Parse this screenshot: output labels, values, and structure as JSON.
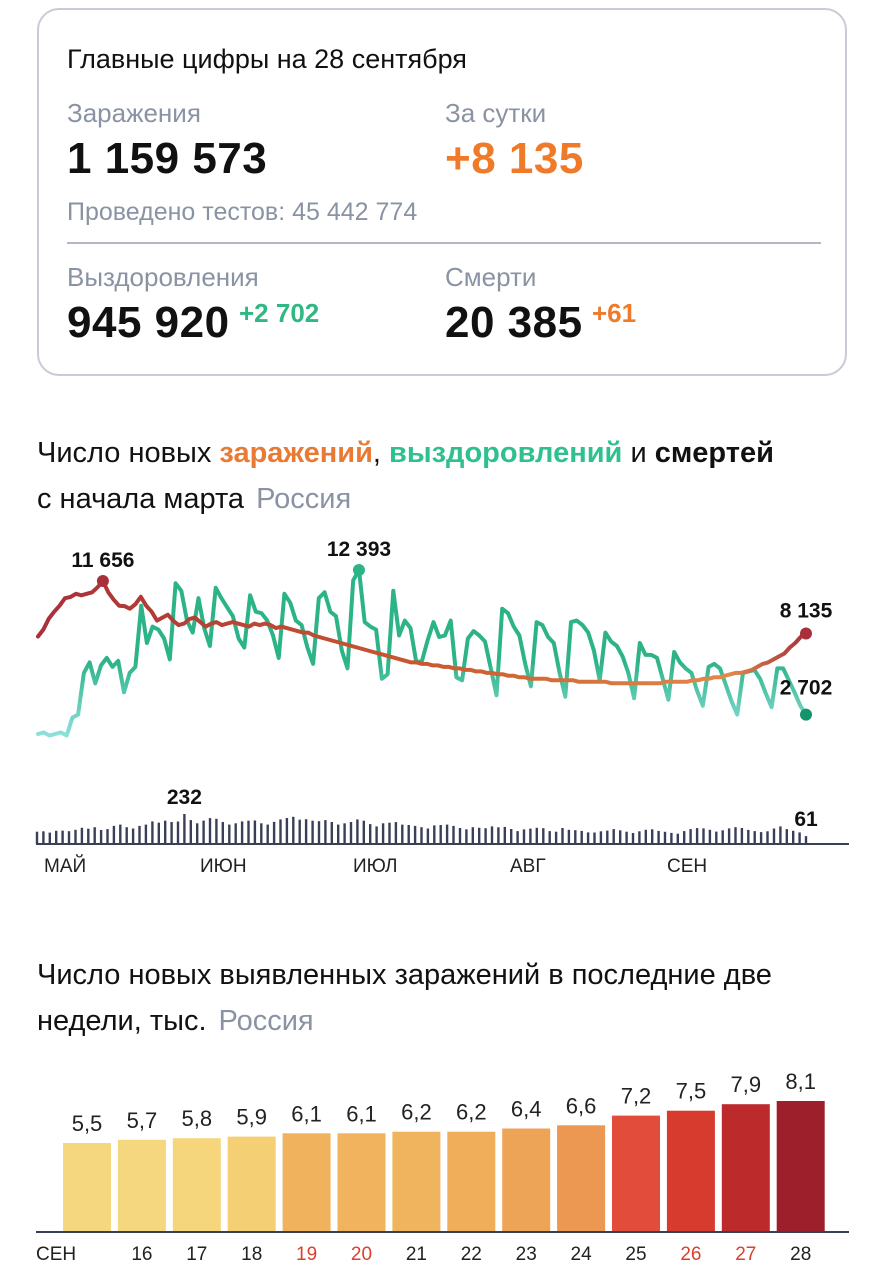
{
  "summary": {
    "title": "Главные цифры на 28 сентября",
    "infections_label": "Заражения",
    "infections_value": "1 159 573",
    "daily_label": "За сутки",
    "daily_value": "+8 135",
    "tests_text": "Проведено тестов: 45 442 774",
    "recoveries_label": "Выздоровления",
    "recoveries_value": "945 920",
    "recoveries_delta": "+2 702",
    "deaths_label": "Смерти",
    "deaths_value": "20 385",
    "deaths_delta": "+61"
  },
  "chart1_title": {
    "part1": "Число новых ",
    "cases": "заражений",
    "sep": ", ",
    "recoveries": "выздоровлений",
    "and": " и ",
    "deaths": "смертей",
    "line2": "с начала марта",
    "region": "Россия"
  },
  "chart2_title": {
    "line1": "Число новых выявленных заражений в последние две",
    "line2": "недели, тыс.",
    "region": "Россия"
  },
  "colors": {
    "cases": "#c9582f",
    "cases_marker": "#a8303a",
    "recoveries": "#2db388",
    "recoveries_light": "#8de0da",
    "deaths": "#3a3f58"
  },
  "chart_data": [
    {
      "type": "line",
      "x_labels": [
        "МАЙ",
        "ИЮН",
        "ИЮЛ",
        "АВГ",
        "СЕН"
      ],
      "series": [
        {
          "name": "заражений",
          "values": [
            7933,
            8407,
            9137,
            9600,
            10000,
            10500,
            10581,
            10800,
            10700,
            10800,
            10900,
            11231,
            11656,
            10900,
            10400,
            10000,
            9974,
            9800,
            10100,
            10600,
            10000,
            9600,
            9000,
            9200,
            9400,
            9000,
            8700,
            8800,
            9100,
            9200,
            8900,
            8600,
            8800,
            8900,
            8700,
            8800,
            8900,
            8800,
            8700,
            8600,
            8800,
            8700,
            8800,
            8700,
            8500,
            8600,
            8500,
            8400,
            8300,
            8200,
            8200,
            8000,
            7900,
            7800,
            7700,
            7600,
            7500,
            7400,
            7300,
            7200,
            7100,
            7000,
            6900,
            6800,
            6700,
            6600,
            6500,
            6400,
            6300,
            6200,
            6200,
            6100,
            6100,
            6000,
            6000,
            5900,
            5900,
            5800,
            5800,
            5700,
            5700,
            5600,
            5600,
            5500,
            5500,
            5400,
            5400,
            5300,
            5300,
            5200,
            5200,
            5100,
            5100,
            5100,
            5100,
            5000,
            5000,
            5000,
            5000,
            5000,
            4900,
            4900,
            4900,
            4900,
            4900,
            4900,
            4800,
            4800,
            4800,
            4800,
            4800,
            4800,
            4800,
            4800,
            4800,
            4800,
            4900,
            4900,
            4900,
            4900,
            4900,
            5000,
            5000,
            5100,
            5100,
            5200,
            5200,
            5300,
            5400,
            5500,
            5500,
            5600,
            5700,
            5900,
            6100,
            6200,
            6400,
            6600,
            6800,
            7200,
            7500,
            7900,
            8135
          ],
          "end_label": "8 135",
          "peak_label": "11 656"
        },
        {
          "name": "выздоровлений",
          "values": [
            1400,
            1500,
            1300,
            1400,
            1500,
            1300,
            2500,
            2700,
            5500,
            6200,
            4800,
            6000,
            6500,
            5900,
            6300,
            4200,
            5500,
            5900,
            10000,
            7500,
            8600,
            8400,
            7800,
            6400,
            11500,
            11000,
            9000,
            8200,
            10500,
            8500,
            7300,
            11200,
            10500,
            9900,
            9300,
            7800,
            7200,
            10700,
            9600,
            9500,
            9000,
            8000,
            6500,
            10800,
            10200,
            9000,
            8700,
            7200,
            6100,
            10500,
            10900,
            9600,
            9300,
            7000,
            5800,
            11700,
            12393,
            8900,
            8600,
            8400,
            5100,
            5400,
            11000,
            8000,
            9000,
            8500,
            6200,
            6300,
            7700,
            8900,
            7900,
            8000,
            9000,
            5200,
            5000,
            7800,
            8300,
            8000,
            7600,
            5800,
            4000,
            9800,
            9500,
            8600,
            8000,
            6100,
            4600,
            8900,
            8700,
            7900,
            7500,
            5500,
            3900,
            8900,
            9000,
            8700,
            8200,
            7000,
            5000,
            8200,
            7600,
            7300,
            6600,
            5500,
            3800,
            7500,
            6700,
            6700,
            6500,
            5100,
            3700,
            6900,
            6200,
            5800,
            5500,
            4300,
            3300,
            5900,
            6100,
            5800,
            4700,
            3600,
            2700,
            5500,
            5600,
            5700,
            5100,
            4100,
            3200,
            5800,
            5800,
            5000,
            4200,
            3300,
            2702
          ],
          "end_label": "2 702",
          "peak_label": "12 393"
        },
        {
          "name": "смертей",
          "values": [
            95,
            98,
            88,
            102,
            104,
            99,
            110,
            125,
            118,
            130,
            108,
            115,
            140,
            150,
            130,
            120,
            140,
            150,
            175,
            165,
            180,
            170,
            174,
            232,
            185,
            160,
            181,
            200,
            195,
            170,
            150,
            160,
            175,
            180,
            182,
            160,
            150,
            171,
            190,
            201,
            210,
            188,
            192,
            180,
            176,
            185,
            170,
            150,
            160,
            170,
            190,
            180,
            154,
            136,
            160,
            165,
            169,
            150,
            147,
            140,
            130,
            120,
            144,
            147,
            150,
            140,
            124,
            114,
            130,
            125,
            122,
            136,
            129,
            132,
            116,
            100,
            113,
            119,
            125,
            122,
            100,
            95,
            124,
            110,
            107,
            101,
            90,
            89,
            98,
            104,
            115,
            106,
            95,
            85,
            98,
            110,
            114,
            101,
            94,
            86,
            80,
            100,
            115,
            123,
            121,
            110,
            96,
            106,
            121,
            130,
            124,
            109,
            100,
            92,
            98,
            120,
            136,
            115,
            102,
            90,
            61
          ],
          "end_label": "61",
          "peak_label": "232"
        }
      ]
    },
    {
      "type": "bar",
      "title": "Число новых выявленных заражений в последние две недели, тыс.",
      "categories": [
        "СЕН",
        "16",
        "17",
        "18",
        "19",
        "20",
        "21",
        "22",
        "23",
        "24",
        "25",
        "26",
        "27",
        "28"
      ],
      "values": [
        5.5,
        5.7,
        5.8,
        5.9,
        6.1,
        6.1,
        6.2,
        6.2,
        6.4,
        6.6,
        7.2,
        7.5,
        7.9,
        8.1
      ],
      "value_labels": [
        "5,5",
        "5,7",
        "5,8",
        "5,9",
        "6,1",
        "6,1",
        "6,2",
        "6,2",
        "6,4",
        "6,6",
        "7,2",
        "7,5",
        "7,9",
        "8,1"
      ],
      "bar_colors": [
        "#f5d77f",
        "#f5d77f",
        "#f5d67d",
        "#f4cf73",
        "#f0b25c",
        "#f1b35e",
        "#f0b45f",
        "#f0ae5a",
        "#eea456",
        "#ec9852",
        "#e14d3a",
        "#d73b2e",
        "#bc2a2c",
        "#9c1f2b"
      ],
      "label_colors": [
        "#222222",
        "#222222",
        "#222222",
        "#222222",
        "#d9412f",
        "#d9412f",
        "#222222",
        "#222222",
        "#222222",
        "#222222",
        "#222222",
        "#d9412f",
        "#d9412f",
        "#222222"
      ]
    }
  ]
}
